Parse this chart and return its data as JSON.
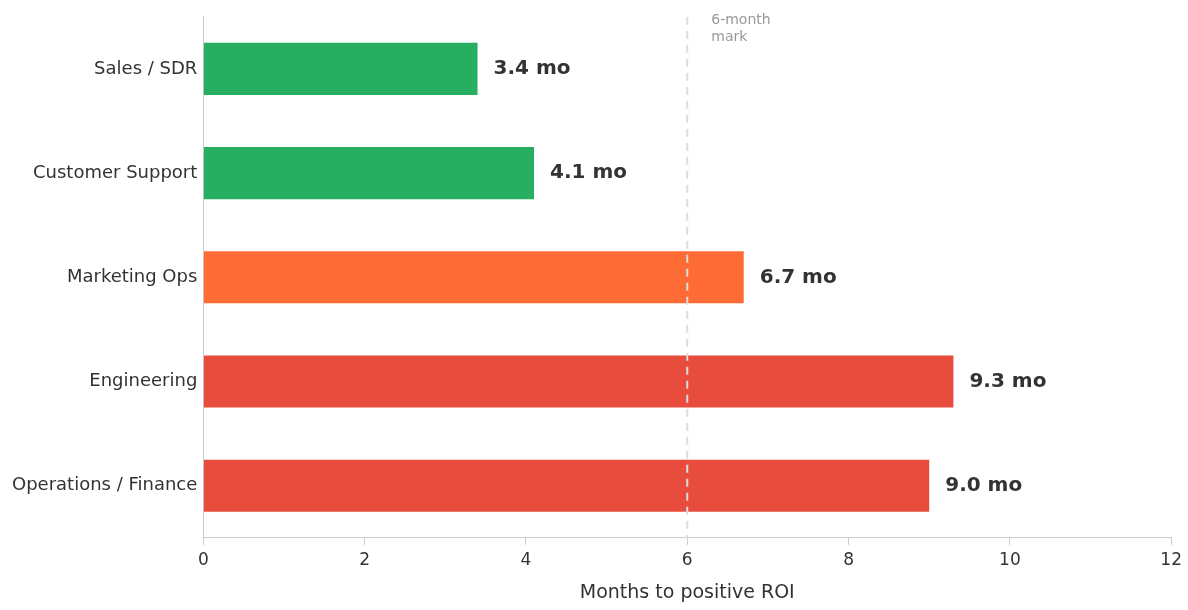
{
  "chart_data": {
    "type": "bar",
    "orientation": "horizontal",
    "xlabel": "Months to positive ROI",
    "categories": [
      "Sales / SDR",
      "Customer Support",
      "Marketing Ops",
      "Engineering",
      "Operations / Finance"
    ],
    "values": [
      3.4,
      4.1,
      6.7,
      9.3,
      9.0
    ],
    "colors": [
      "#27ae60",
      "#27ae60",
      "#ff6b35",
      "#e74c3c",
      "#e74c3c"
    ],
    "value_labels": [
      "3.4 mo",
      "4.1 mo",
      "6.7 mo",
      "9.3 mo",
      "9.0 mo"
    ],
    "xlim": [
      0,
      12
    ],
    "xticks": [
      0,
      2,
      4,
      6,
      8,
      10,
      12
    ],
    "ref_lines": [
      {
        "axis": "x",
        "value": 6,
        "label": "6-month mark",
        "color": "#dddddd",
        "line_style": "dashed"
      }
    ],
    "grid": false,
    "legend": false
  }
}
